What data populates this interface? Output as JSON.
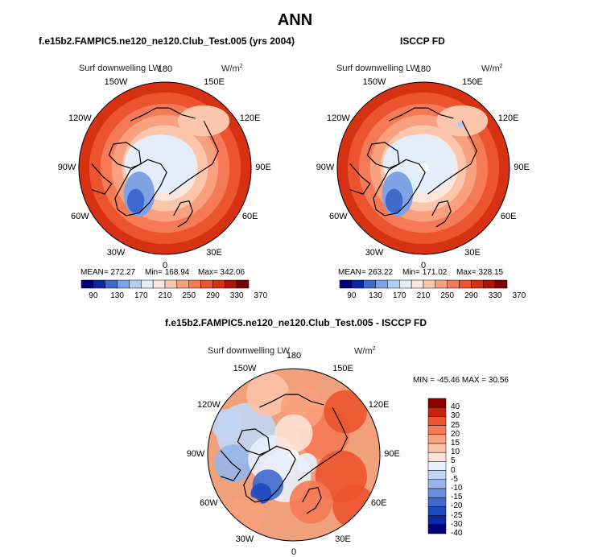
{
  "title": "ANN",
  "panels": [
    {
      "header": "f.e15b2.FAMPIC5.ne120_ne120.Club_Test.005 (yrs 2004)",
      "variable": "Surf downwelling LW",
      "units": "W/m",
      "units_sup": "2",
      "stats": {
        "mean": "MEAN= 272.27",
        "min": "Min= 168.94",
        "max": "Max= 342.06"
      },
      "colorbar_ticks": [
        "90",
        "130",
        "170",
        "210",
        "250",
        "290",
        "330",
        "370"
      ]
    },
    {
      "header": "ISCCP FD",
      "variable": "Surf downwelling LW",
      "units": "W/m",
      "units_sup": "2",
      "stats": {
        "mean": "MEAN= 263.22",
        "min": "Min= 171.02",
        "max": "Max= 328.15"
      },
      "colorbar_ticks": [
        "90",
        "130",
        "170",
        "210",
        "250",
        "290",
        "330",
        "370"
      ]
    },
    {
      "header": "f.e15b2.FAMPIC5.ne120_ne120.Club_Test.005 - ISCCP FD",
      "variable": "Surf downwelling LW",
      "units": "W/m",
      "units_sup": "2",
      "stats": {
        "minmax": "MIN = -45.46  MAX =  30.56"
      },
      "colorbar_ticks": [
        "40",
        "30",
        "25",
        "20",
        "15",
        "10",
        "5",
        "0",
        "-5",
        "-10",
        "-15",
        "-20",
        "-25",
        "-30",
        "-40"
      ]
    }
  ],
  "longitude_labels": [
    "180",
    "150E",
    "120E",
    "90E",
    "60E",
    "30E",
    "0",
    "30W",
    "60W",
    "90W",
    "120W",
    "150W"
  ],
  "colors": {
    "abs_scale": [
      "#00007a",
      "#0b27a3",
      "#3f69cc",
      "#7ea2e3",
      "#b2cdf0",
      "#e3eefa",
      "#fde6dc",
      "#fcc6ad",
      "#f9a07f",
      "#f57a55",
      "#ec5430",
      "#d63112",
      "#b01409",
      "#7a0000"
    ],
    "diff_scale": [
      "#00007a",
      "#0b27a3",
      "#1e48c0",
      "#3f69cc",
      "#6a8fdb",
      "#96b5eb",
      "#c1d6f5",
      "#e8f0fb",
      "#fde3d6",
      "#fcc3a8",
      "#f9a07c",
      "#f57a55",
      "#ec5430",
      "#c8240c",
      "#8b0000"
    ]
  },
  "chart_data": [
    {
      "type": "polar-stereographic-map",
      "title": "f.e15b2.FAMPIC5.ne120_ne120.Club_Test.005 (yrs 2004)",
      "variable": "Surf downwelling LW",
      "units": "W/m2",
      "mean": 272.27,
      "min": 168.94,
      "max": 342.06,
      "contour_levels": [
        90,
        130,
        170,
        210,
        250,
        290,
        330,
        370
      ]
    },
    {
      "type": "polar-stereographic-map",
      "title": "ISCCP FD",
      "variable": "Surf downwelling LW",
      "units": "W/m2",
      "mean": 263.22,
      "min": 171.02,
      "max": 328.15,
      "contour_levels": [
        90,
        130,
        170,
        210,
        250,
        290,
        330,
        370
      ]
    },
    {
      "type": "polar-stereographic-map",
      "title": "f.e15b2.FAMPIC5.ne120_ne120.Club_Test.005 - ISCCP FD",
      "variable": "Surf downwelling LW",
      "units": "W/m2",
      "min": -45.46,
      "max": 30.56,
      "contour_levels": [
        -40,
        -30,
        -25,
        -20,
        -15,
        -10,
        -5,
        0,
        5,
        10,
        15,
        20,
        25,
        30,
        40
      ]
    }
  ]
}
